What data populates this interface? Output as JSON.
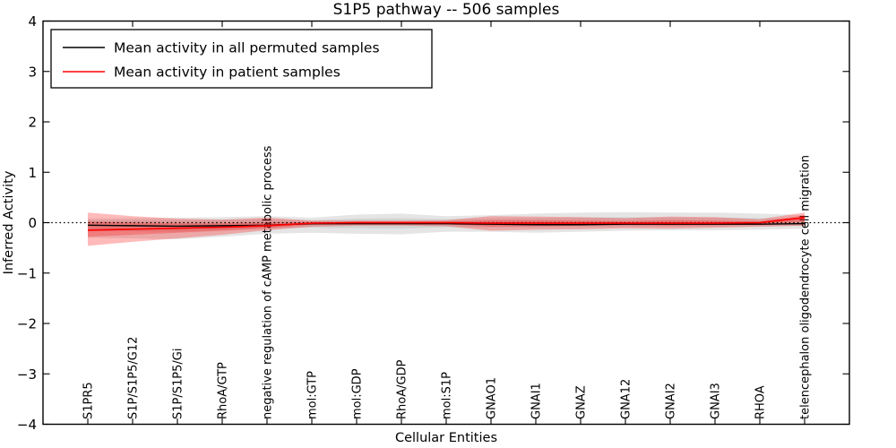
{
  "title": "S1P5 pathway -- 506 samples",
  "legend": {
    "entries": [
      {
        "label": "Mean activity in all permuted samples",
        "color": "#000000"
      },
      {
        "label": "Mean activity in patient samples",
        "color": "#ff0000"
      }
    ]
  },
  "chart_data": {
    "type": "line",
    "title": "S1P5 pathway -- 506 samples",
    "xlabel": "Cellular Entities",
    "ylabel": "Inferred Activity",
    "ylim": [
      -4,
      4
    ],
    "grid": false,
    "legend_position": "upper left",
    "background": "#ffffff",
    "yticks": [
      {
        "value": 4,
        "label": "4"
      },
      {
        "value": 3,
        "label": "3"
      },
      {
        "value": 2,
        "label": "2"
      },
      {
        "value": 1,
        "label": "1"
      },
      {
        "value": 0,
        "label": "0"
      },
      {
        "value": -1,
        "label": "−1"
      },
      {
        "value": -2,
        "label": "−2"
      },
      {
        "value": -3,
        "label": "−3"
      },
      {
        "value": -4,
        "label": "−4"
      }
    ],
    "categories": [
      "S1PR5",
      "S1P/S1P5/G12",
      "S1P/S1P5/Gi",
      "RhoA/GTP",
      "negative regulation of cAMP metabolic process",
      "mol:GTP",
      "mol:GDP",
      "RhoA/GDP",
      "mol:S1P",
      "GNAO1",
      "GNAI1",
      "GNAZ",
      "GNA12",
      "GNAI2",
      "GNAI3",
      "RHOA",
      "telencephalon oligodendrocyte cell migration"
    ],
    "reference_line": {
      "value": 0,
      "style": "dotted",
      "color": "#000000"
    },
    "series": [
      {
        "key": "permuted-mean-line",
        "name": "Mean activity in all permuted samples",
        "color": "#000000",
        "style": "solid",
        "width": 1.4,
        "values": [
          -0.05,
          -0.06,
          -0.07,
          -0.06,
          -0.05,
          -0.02,
          -0.02,
          -0.02,
          -0.02,
          -0.03,
          -0.04,
          -0.04,
          -0.03,
          -0.03,
          -0.03,
          -0.03,
          -0.02
        ]
      },
      {
        "key": "patient-mean-line",
        "name": "Mean activity in patient samples",
        "color": "#ff0000",
        "style": "solid",
        "width": 1.7,
        "values": [
          -0.15,
          -0.13,
          -0.11,
          -0.09,
          -0.06,
          -0.01,
          0,
          0,
          0,
          -0.01,
          -0.01,
          -0.01,
          -0.01,
          -0.01,
          -0.01,
          0,
          0.1
        ]
      }
    ],
    "bands": [
      {
        "key": "permuted-outer-band",
        "name": "permuted samples spread (outer)",
        "color": "#000000",
        "alpha": 0.1,
        "upper": [
          0.08,
          0.09,
          0.1,
          0.11,
          0.13,
          0.1,
          0.16,
          0.18,
          0.13,
          0.15,
          0.18,
          0.2,
          0.21,
          0.2,
          0.2,
          0.18,
          0.15
        ],
        "lower": [
          -0.3,
          -0.31,
          -0.33,
          -0.28,
          -0.22,
          -0.2,
          -0.22,
          -0.23,
          -0.18,
          -0.18,
          -0.2,
          -0.18,
          -0.16,
          -0.15,
          -0.15,
          -0.14,
          -0.12
        ]
      },
      {
        "key": "permuted-inner-band",
        "name": "permuted samples spread (inner)",
        "color": "#000000",
        "alpha": 0.08,
        "upper": [
          0.04,
          0.05,
          0.05,
          0.06,
          0.07,
          0.05,
          0.08,
          0.09,
          0.07,
          0.08,
          0.09,
          0.1,
          0.11,
          0.1,
          0.1,
          0.09,
          0.08
        ],
        "lower": [
          -0.16,
          -0.17,
          -0.18,
          -0.15,
          -0.12,
          -0.1,
          -0.11,
          -0.12,
          -0.09,
          -0.09,
          -0.1,
          -0.09,
          -0.08,
          -0.08,
          -0.08,
          -0.07,
          -0.06
        ]
      },
      {
        "key": "patient-outer-band",
        "name": "patient samples spread (outer)",
        "color": "#ff0000",
        "alpha": 0.27,
        "upper": [
          0.2,
          0.13,
          0.08,
          0.06,
          0.1,
          0.04,
          0.04,
          0.04,
          0.05,
          0.13,
          0.12,
          0.11,
          0.09,
          0.12,
          0.11,
          0.07,
          0.2
        ],
        "lower": [
          -0.46,
          -0.38,
          -0.31,
          -0.24,
          -0.15,
          -0.08,
          -0.06,
          -0.06,
          -0.07,
          -0.16,
          -0.14,
          -0.13,
          -0.11,
          -0.12,
          -0.1,
          -0.08,
          -0.06
        ]
      },
      {
        "key": "patient-inner-band",
        "name": "patient samples spread (inner)",
        "color": "#ff0000",
        "alpha": 0.25,
        "upper": [
          0.02,
          0,
          -0.01,
          -0.01,
          0,
          0.01,
          0.01,
          0.01,
          0.02,
          0.05,
          0.05,
          0.04,
          0.03,
          0.05,
          0.04,
          0.02,
          0.15
        ],
        "lower": [
          -0.28,
          -0.24,
          -0.2,
          -0.16,
          -0.11,
          -0.04,
          -0.03,
          -0.03,
          -0.03,
          -0.08,
          -0.07,
          -0.06,
          -0.05,
          -0.06,
          -0.05,
          -0.04,
          0.02
        ]
      }
    ]
  }
}
